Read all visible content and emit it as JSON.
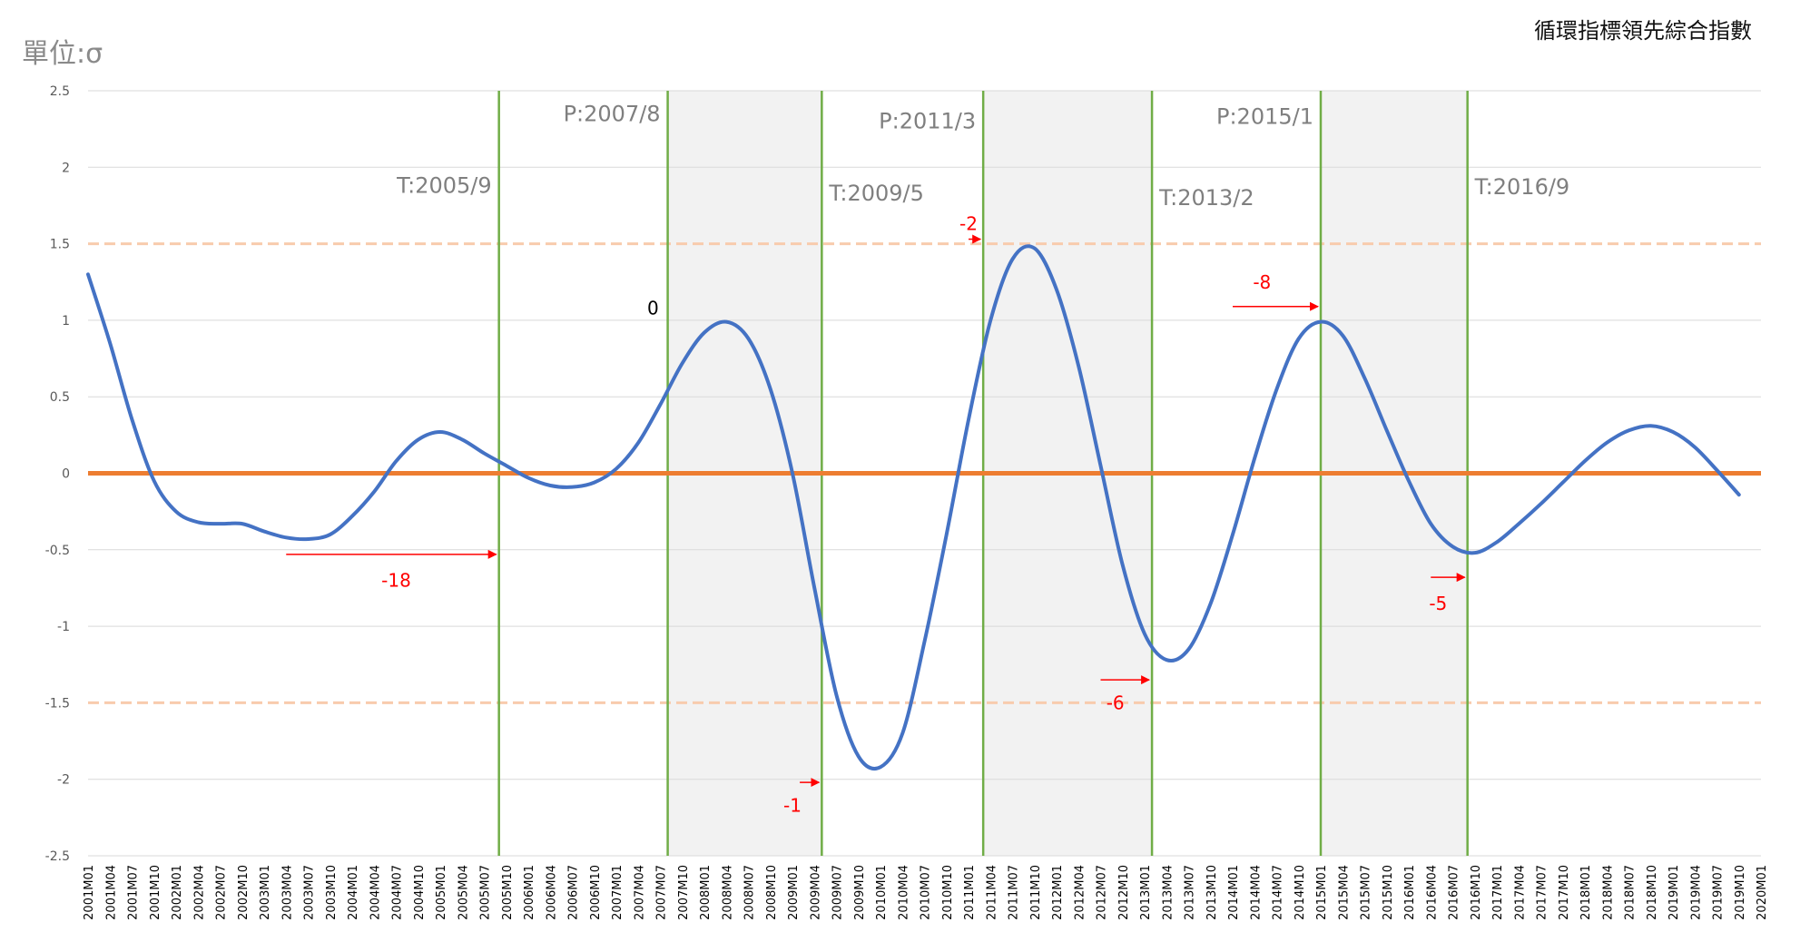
{
  "chart_data": {
    "type": "line",
    "title": "循環指標領先綜合指數",
    "ylabel": "單位:σ",
    "xlabel": "",
    "ylim": [
      -2.5,
      2.5
    ],
    "yticks": [
      2.5,
      2,
      1.5,
      1,
      0.5,
      0,
      -0.5,
      -1,
      -1.5,
      -2,
      -2.5
    ],
    "ytick_labels": [
      "2.5",
      "2",
      "1.5",
      "1",
      "0.5",
      "0",
      "-0.5",
      "-1",
      "-1.5",
      "-2",
      "-2.5"
    ],
    "grid": true,
    "xtick_labels": [
      "2001M01",
      "2001M04",
      "2001M07",
      "2001M10",
      "2002M01",
      "2002M04",
      "2002M07",
      "2002M10",
      "2003M01",
      "2003M04",
      "2003M07",
      "2003M10",
      "2004M01",
      "2004M04",
      "2004M07",
      "2004M10",
      "2005M01",
      "2005M04",
      "2005M07",
      "2005M10",
      "2006M01",
      "2006M04",
      "2006M07",
      "2006M10",
      "2007M01",
      "2007M04",
      "2007M07",
      "2007M10",
      "2008M01",
      "2008M04",
      "2008M07",
      "2008M10",
      "2009M01",
      "2009M04",
      "2009M07",
      "2009M10",
      "2010M01",
      "2010M04",
      "2010M07",
      "2010M10",
      "2011M01",
      "2011M04",
      "2011M07",
      "2011M10",
      "2012M01",
      "2012M04",
      "2012M07",
      "2012M10",
      "2013M01",
      "2013M04",
      "2013M07",
      "2013M10",
      "2014M01",
      "2014M04",
      "2014M07",
      "2014M10",
      "2015M01",
      "2015M04",
      "2015M07",
      "2015M10",
      "2016M01",
      "2016M04",
      "2016M07",
      "2016M10",
      "2017M01",
      "2017M04",
      "2017M07",
      "2017M10",
      "2018M01",
      "2018M04",
      "2018M07",
      "2018M10",
      "2019M01",
      "2019M04",
      "2019M07",
      "2019M10",
      "2020M01"
    ],
    "series": [
      {
        "color": "#4472C4",
        "points": [
          [
            "2001M01",
            1.3
          ],
          [
            "2001M04",
            0.85
          ],
          [
            "2001M07",
            0.35
          ],
          [
            "2001M10",
            -0.05
          ],
          [
            "2002M01",
            -0.25
          ],
          [
            "2002M04",
            -0.32
          ],
          [
            "2002M07",
            -0.33
          ],
          [
            "2002M10",
            -0.33
          ],
          [
            "2003M01",
            -0.38
          ],
          [
            "2003M04",
            -0.42
          ],
          [
            "2003M07",
            -0.43
          ],
          [
            "2003M10",
            -0.4
          ],
          [
            "2004M01",
            -0.28
          ],
          [
            "2004M04",
            -0.12
          ],
          [
            "2004M07",
            0.08
          ],
          [
            "2004M10",
            0.22
          ],
          [
            "2005M01",
            0.27
          ],
          [
            "2005M04",
            0.22
          ],
          [
            "2005M07",
            0.13
          ],
          [
            "2005M10",
            0.05
          ],
          [
            "2006M01",
            -0.03
          ],
          [
            "2006M04",
            -0.08
          ],
          [
            "2006M07",
            -0.09
          ],
          [
            "2006M10",
            -0.06
          ],
          [
            "2007M01",
            0.03
          ],
          [
            "2007M04",
            0.2
          ],
          [
            "2007M07",
            0.45
          ],
          [
            "2007M10",
            0.72
          ],
          [
            "2008M01",
            0.92
          ],
          [
            "2008M04",
            0.99
          ],
          [
            "2008M07",
            0.88
          ],
          [
            "2008M10",
            0.55
          ],
          [
            "2009M01",
            0.0
          ],
          [
            "2009M04",
            -0.75
          ],
          [
            "2009M07",
            -1.45
          ],
          [
            "2009M10",
            -1.85
          ],
          [
            "2010M01",
            -1.92
          ],
          [
            "2010M04",
            -1.7
          ],
          [
            "2010M07",
            -1.1
          ],
          [
            "2010M10",
            -0.4
          ],
          [
            "2011M01",
            0.35
          ],
          [
            "2011M04",
            1.0
          ],
          [
            "2011M07",
            1.4
          ],
          [
            "2011M10",
            1.47
          ],
          [
            "2012M01",
            1.2
          ],
          [
            "2012M04",
            0.7
          ],
          [
            "2012M07",
            0.05
          ],
          [
            "2012M10",
            -0.6
          ],
          [
            "2013M01",
            -1.05
          ],
          [
            "2013M04",
            -1.22
          ],
          [
            "2013M07",
            -1.15
          ],
          [
            "2013M10",
            -0.85
          ],
          [
            "2014M01",
            -0.4
          ],
          [
            "2014M04",
            0.1
          ],
          [
            "2014M07",
            0.55
          ],
          [
            "2014M10",
            0.88
          ],
          [
            "2015M01",
            0.99
          ],
          [
            "2015M04",
            0.9
          ],
          [
            "2015M07",
            0.62
          ],
          [
            "2015M10",
            0.28
          ],
          [
            "2016M01",
            -0.05
          ],
          [
            "2016M04",
            -0.33
          ],
          [
            "2016M07",
            -0.48
          ],
          [
            "2016M10",
            -0.52
          ],
          [
            "2017M01",
            -0.45
          ],
          [
            "2017M04",
            -0.33
          ],
          [
            "2017M07",
            -0.2
          ],
          [
            "2017M10",
            -0.06
          ],
          [
            "2018M01",
            0.08
          ],
          [
            "2018M04",
            0.2
          ],
          [
            "2018M07",
            0.28
          ],
          [
            "2018M10",
            0.31
          ],
          [
            "2019M01",
            0.27
          ],
          [
            "2019M04",
            0.17
          ],
          [
            "2019M07",
            0.02
          ],
          [
            "2019M10",
            -0.14
          ]
        ]
      }
    ],
    "zero_line_color": "#ED7D31",
    "band_lines": [
      1.5,
      -1.5
    ],
    "band_line_color": "#F8CBAD",
    "shaded_periods": [
      {
        "from": "2007M08",
        "to": "2009M05"
      },
      {
        "from": "2011M03",
        "to": "2013M02"
      },
      {
        "from": "2015M01",
        "to": "2016M09"
      }
    ],
    "turning_points": [
      {
        "at": "2005M09",
        "label": "T:2005/9",
        "label_y": 1.88
      },
      {
        "at": "2007M08",
        "label": "P:2007/8",
        "label_y": 2.35
      },
      {
        "at": "2009M05",
        "label": "T:2009/5",
        "label_y": 1.83
      },
      {
        "at": "2011M03",
        "label": "P:2011/3",
        "label_y": 2.3
      },
      {
        "at": "2013M02",
        "label": "T:2013/2",
        "label_y": 1.8
      },
      {
        "at": "2015M01",
        "label": "P:2015/1",
        "label_y": 2.33
      },
      {
        "at": "2016M09",
        "label": "T:2016/9",
        "label_y": 1.87
      }
    ],
    "turning_line_color": "#70AD47",
    "lead_annotations": [
      {
        "label": "-18",
        "from": "2003M04",
        "to": "2005M09",
        "y": -0.53,
        "label_at": "2004M07",
        "label_y": -0.7
      },
      {
        "label": "0",
        "label_at": "2007M06",
        "label_y": 1.08,
        "color": "#000000"
      },
      {
        "label": "-1",
        "from": "2009M02",
        "to": "2009M05",
        "y": -2.02,
        "label_at": "2009M01",
        "label_y": -2.17
      },
      {
        "label": "-2",
        "from": "2011M01",
        "to": "2011M03",
        "y": 1.53,
        "label_at": "2011M01",
        "label_y": 1.63
      },
      {
        "label": "-6",
        "from": "2012M07",
        "to": "2013M02",
        "y": -1.35,
        "label_at": "2012M09",
        "label_y": -1.5
      },
      {
        "label": "-8",
        "from": "2014M01",
        "to": "2015M01",
        "y": 1.09,
        "label_at": "2014M05",
        "label_y": 1.25
      },
      {
        "label": "-5",
        "from": "2016M04",
        "to": "2016M09",
        "y": -0.68,
        "label_at": "2016M05",
        "label_y": -0.85
      }
    ],
    "annotation_color": "#FF0000"
  }
}
